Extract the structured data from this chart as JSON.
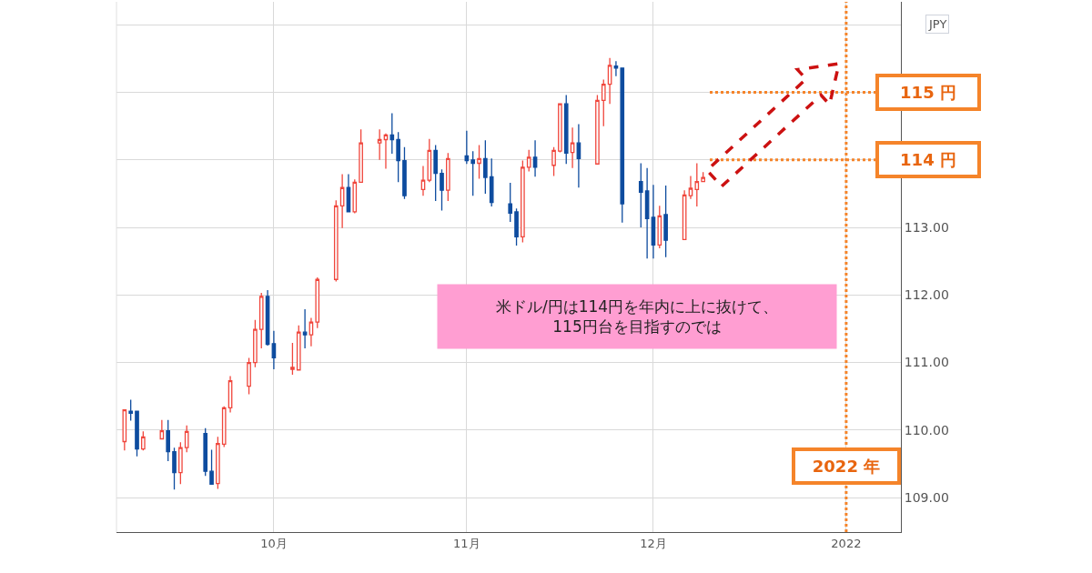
{
  "chart_data": {
    "type": "candlestick",
    "x": [
      "2021-09-07",
      "2021-09-08",
      "2021-09-09",
      "2021-09-10",
      "2021-09-13",
      "2021-09-14",
      "2021-09-15",
      "2021-09-16",
      "2021-09-17",
      "2021-09-20",
      "2021-09-21",
      "2021-09-22",
      "2021-09-23",
      "2021-09-24",
      "2021-09-27",
      "2021-09-28",
      "2021-09-29",
      "2021-09-30",
      "2021-10-01",
      "2021-10-04",
      "2021-10-05",
      "2021-10-06",
      "2021-10-07",
      "2021-10-08",
      "2021-10-11",
      "2021-10-12",
      "2021-10-13",
      "2021-10-14",
      "2021-10-15",
      "2021-10-18",
      "2021-10-19",
      "2021-10-20",
      "2021-10-21",
      "2021-10-22",
      "2021-10-25",
      "2021-10-26",
      "2021-10-27",
      "2021-10-28",
      "2021-10-29",
      "2021-11-01",
      "2021-11-02",
      "2021-11-03",
      "2021-11-04",
      "2021-11-05",
      "2021-11-08",
      "2021-11-09",
      "2021-11-10",
      "2021-11-11",
      "2021-11-12",
      "2021-11-15",
      "2021-11-16",
      "2021-11-17",
      "2021-11-18",
      "2021-11-19",
      "2021-11-22",
      "2021-11-23",
      "2021-11-24",
      "2021-11-25",
      "2021-11-26",
      "2021-11-29",
      "2021-11-30",
      "2021-12-01",
      "2021-12-02",
      "2021-12-03",
      "2021-12-06",
      "2021-12-07",
      "2021-12-08",
      "2021-12-09"
    ],
    "ohlc": [
      [
        109.83,
        110.3,
        109.7,
        110.3
      ],
      [
        110.28,
        110.45,
        110.14,
        110.25
      ],
      [
        110.28,
        110.28,
        109.61,
        109.72
      ],
      [
        109.72,
        109.98,
        109.7,
        109.9
      ],
      [
        109.87,
        110.15,
        109.86,
        109.99
      ],
      [
        109.99,
        110.15,
        109.54,
        109.68
      ],
      [
        109.68,
        109.74,
        109.12,
        109.37
      ],
      [
        109.37,
        109.82,
        109.2,
        109.74
      ],
      [
        109.74,
        110.07,
        109.67,
        109.98
      ],
      [
        109.95,
        110.03,
        109.32,
        109.39
      ],
      [
        109.39,
        109.71,
        109.19,
        109.2
      ],
      [
        109.21,
        109.9,
        109.13,
        109.8
      ],
      [
        109.79,
        110.35,
        109.75,
        110.33
      ],
      [
        110.33,
        110.8,
        110.26,
        110.73
      ],
      [
        110.65,
        111.07,
        110.53,
        111.0
      ],
      [
        111.0,
        111.63,
        110.93,
        111.49
      ],
      [
        111.49,
        112.03,
        111.21,
        111.98
      ],
      [
        111.98,
        112.07,
        111.25,
        111.27
      ],
      [
        111.28,
        111.47,
        110.9,
        111.07
      ],
      [
        110.9,
        111.29,
        110.82,
        110.93
      ],
      [
        110.89,
        111.55,
        110.88,
        111.45
      ],
      [
        111.45,
        111.79,
        111.21,
        111.41
      ],
      [
        111.41,
        111.66,
        111.24,
        111.6
      ],
      [
        111.6,
        112.26,
        111.51,
        112.23
      ],
      [
        112.23,
        113.4,
        112.2,
        113.32
      ],
      [
        113.32,
        113.79,
        112.99,
        113.59
      ],
      [
        113.59,
        113.79,
        113.23,
        113.23
      ],
      [
        113.23,
        113.71,
        113.21,
        113.67
      ],
      [
        113.67,
        114.45,
        113.67,
        114.25
      ],
      [
        114.25,
        114.45,
        114.0,
        114.3
      ],
      [
        114.3,
        114.39,
        113.87,
        114.37
      ],
      [
        114.37,
        114.69,
        114.09,
        114.3
      ],
      [
        114.3,
        114.41,
        113.67,
        113.99
      ],
      [
        113.99,
        114.19,
        113.42,
        113.47
      ],
      [
        113.56,
        113.91,
        113.47,
        113.7
      ],
      [
        113.7,
        114.31,
        113.67,
        114.14
      ],
      [
        114.14,
        114.22,
        113.39,
        113.8
      ],
      [
        113.8,
        113.86,
        113.25,
        113.55
      ],
      [
        113.55,
        114.1,
        113.39,
        114.02
      ],
      [
        114.06,
        114.43,
        113.94,
        113.99
      ],
      [
        114.0,
        114.13,
        113.47,
        113.95
      ],
      [
        113.95,
        114.22,
        113.72,
        114.02
      ],
      [
        114.02,
        114.29,
        113.5,
        113.74
      ],
      [
        113.75,
        114.02,
        113.31,
        113.37
      ],
      [
        113.35,
        113.66,
        113.08,
        113.21
      ],
      [
        113.23,
        113.28,
        112.73,
        112.86
      ],
      [
        112.86,
        113.99,
        112.78,
        113.89
      ],
      [
        113.89,
        114.15,
        113.83,
        114.04
      ],
      [
        114.04,
        114.29,
        113.75,
        113.89
      ],
      [
        113.92,
        114.19,
        113.76,
        114.14
      ],
      [
        114.13,
        114.84,
        114.11,
        114.83
      ],
      [
        114.83,
        114.96,
        113.94,
        114.1
      ],
      [
        114.11,
        114.48,
        113.88,
        114.25
      ],
      [
        114.25,
        114.53,
        113.59,
        114.02
      ],
      [
        113.94,
        114.96,
        113.94,
        114.88
      ],
      [
        114.88,
        115.19,
        114.5,
        115.12
      ],
      [
        115.12,
        115.51,
        114.83,
        115.4
      ],
      [
        115.39,
        115.46,
        115.24,
        115.36
      ],
      [
        115.36,
        115.36,
        113.07,
        113.35
      ],
      [
        113.68,
        113.95,
        113.0,
        113.52
      ],
      [
        113.54,
        113.88,
        112.54,
        113.13
      ],
      [
        113.15,
        113.63,
        112.54,
        112.74
      ],
      [
        112.74,
        113.32,
        112.69,
        113.17
      ],
      [
        113.19,
        113.62,
        112.56,
        112.81
      ],
      [
        112.82,
        113.55,
        112.82,
        113.48
      ],
      [
        113.47,
        113.76,
        113.42,
        113.58
      ],
      [
        113.56,
        113.95,
        113.31,
        113.68
      ],
      [
        113.68,
        113.82,
        113.68,
        113.74
      ]
    ],
    "colors": [
      "#f0463c",
      "#0e4c9f",
      "#0e4c9f",
      "#f0463c",
      "#f0463c",
      "#0e4c9f",
      "#0e4c9f",
      "#f0463c",
      "#f0463c",
      "#0e4c9f",
      "#0e4c9f",
      "#f0463c",
      "#f0463c",
      "#f0463c",
      "#f0463c",
      "#f0463c",
      "#f0463c",
      "#0e4c9f",
      "#0e4c9f",
      "#f0463c",
      "#f0463c",
      "#0e4c9f",
      "#f0463c",
      "#f0463c",
      "#f0463c",
      "#f0463c",
      "#0e4c9f",
      "#f0463c",
      "#f0463c",
      "#f0463c",
      "#f0463c",
      "#0e4c9f",
      "#0e4c9f",
      "#0e4c9f",
      "#f0463c",
      "#f0463c",
      "#0e4c9f",
      "#0e4c9f",
      "#f0463c",
      "#0e4c9f",
      "#0e4c9f",
      "#f0463c",
      "#0e4c9f",
      "#0e4c9f",
      "#0e4c9f",
      "#0e4c9f",
      "#f0463c",
      "#f0463c",
      "#0e4c9f",
      "#f0463c",
      "#f0463c",
      "#0e4c9f",
      "#f0463c",
      "#0e4c9f",
      "#f0463c",
      "#f0463c",
      "#f0463c",
      "#0e4c9f",
      "#0e4c9f",
      "#0e4c9f",
      "#0e4c9f",
      "#0e4c9f",
      "#f0463c",
      "#0e4c9f",
      "#f0463c",
      "#f0463c",
      "#f0463c",
      "#f0463c"
    ],
    "xlim": [
      "2021-09-05T17:00",
      "2022-01-09T19:00"
    ],
    "xticks": [
      {
        "value": "2021-10-01",
        "label": "10月"
      },
      {
        "value": "2021-11-01",
        "label": "11月"
      },
      {
        "value": "2021-12-01",
        "label": "12月"
      },
      {
        "value": "2022-01-01",
        "label": "2022"
      }
    ],
    "ylim": [
      108.49,
      116.34
    ],
    "yticks": [
      {
        "value": 109,
        "label": "109.00"
      },
      {
        "value": 110,
        "label": "110.00"
      },
      {
        "value": 111,
        "label": "111.00"
      },
      {
        "value": 112,
        "label": "112.00"
      },
      {
        "value": 113,
        "label": "113.00"
      },
      {
        "value": 114,
        "label": null
      },
      {
        "value": 115,
        "label": null
      },
      {
        "value": 116,
        "label": null
      }
    ],
    "grid": true,
    "legend": false,
    "ref_lines": [
      {
        "axis": "y",
        "value": 115,
        "label": "115 円",
        "color": "#f5842a",
        "line_style": "dotted"
      },
      {
        "axis": "y",
        "value": 114,
        "label": "114 円",
        "color": "#f5842a",
        "line_style": "dotted"
      },
      {
        "axis": "x",
        "value": "2022-01-01",
        "label": "2022 年",
        "color": "#f5842a",
        "line_style": "dotted"
      }
    ],
    "annotations": [
      "米ドル/円は114円を年内に上に抜けて、\n115円台を目指すのでは",
      "JPY"
    ]
  }
}
